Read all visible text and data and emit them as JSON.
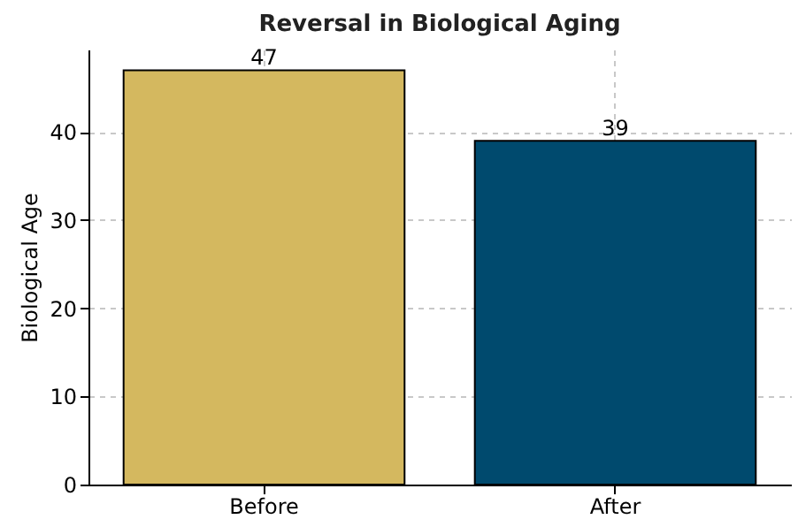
{
  "chart_data": {
    "type": "bar",
    "title": "Reversal in Biological Aging",
    "ylabel": "Biological Age",
    "categories": [
      "Before",
      "After"
    ],
    "values": [
      47,
      39
    ],
    "colors": [
      "#d4b85f",
      "#004a6e"
    ],
    "ylim": [
      0,
      49.35
    ],
    "yticks": [
      0,
      10,
      20,
      30,
      40
    ],
    "grid": true,
    "data_labels": true
  }
}
